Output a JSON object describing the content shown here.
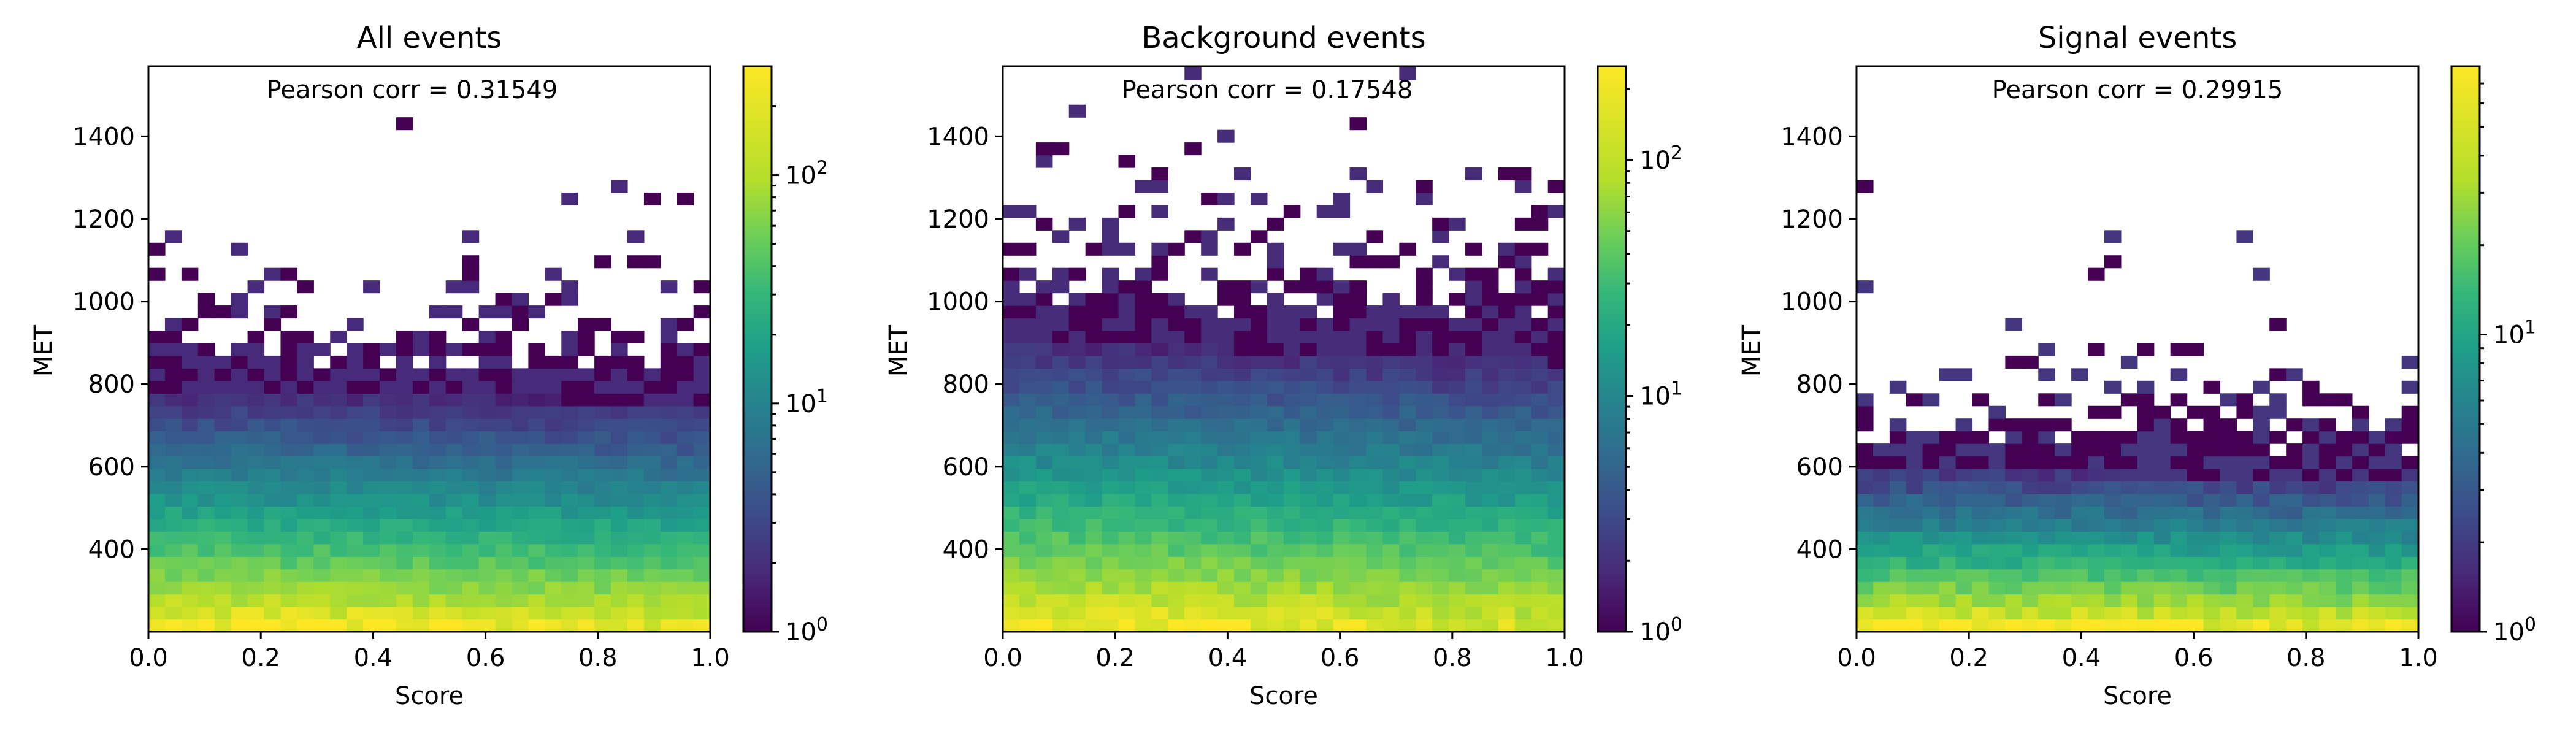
{
  "figure": {
    "panels": [
      {
        "title": "All events",
        "annotation": "Pearson corr = 0.31549"
      },
      {
        "title": "Background events",
        "annotation": "Pearson corr = 0.17548"
      },
      {
        "title": "Signal events",
        "annotation": "Pearson corr = 0.29915"
      }
    ]
  },
  "chart_data": [
    {
      "type": "heatmap",
      "title": "All events",
      "annotation": "Pearson corr = 0.31549",
      "xlabel": "Score",
      "ylabel": "MET",
      "xlim": [
        0.0,
        1.0
      ],
      "ylim": [
        200,
        1570
      ],
      "x_ticks": [
        0.0,
        0.2,
        0.4,
        0.6,
        0.8,
        1.0
      ],
      "x_tick_labels": [
        "0.0",
        "0.2",
        "0.4",
        "0.6",
        "0.8",
        "1.0"
      ],
      "y_ticks": [
        400,
        600,
        800,
        1000,
        1200,
        1400
      ],
      "y_tick_labels": [
        "400",
        "600",
        "800",
        "1000",
        "1200",
        "1400"
      ],
      "bins": {
        "x_count": 34,
        "x_width": 0.0294,
        "y_count": 45,
        "y_width": 30.4
      },
      "colorbar": {
        "scale": "log",
        "range": [
          1,
          300
        ],
        "ticks": [
          1,
          10,
          100
        ],
        "tick_labels": [
          "10^0",
          "10^1",
          "10^2"
        ]
      },
      "profile": {
        "peak_count": 300,
        "decay_per_100": 0.4,
        "score_slope": -0.5
      },
      "seed": 11
    },
    {
      "type": "heatmap",
      "title": "Background events",
      "annotation": "Pearson corr = 0.17548",
      "xlabel": "Score",
      "ylabel": "MET",
      "xlim": [
        0.0,
        1.0
      ],
      "ylim": [
        200,
        1570
      ],
      "x_ticks": [
        0.0,
        0.2,
        0.4,
        0.6,
        0.8,
        1.0
      ],
      "x_tick_labels": [
        "0.0",
        "0.2",
        "0.4",
        "0.6",
        "0.8",
        "1.0"
      ],
      "y_ticks": [
        400,
        600,
        800,
        1000,
        1200,
        1400
      ],
      "y_tick_labels": [
        "400",
        "600",
        "800",
        "1000",
        "1200",
        "1400"
      ],
      "bins": {
        "x_count": 34,
        "x_width": 0.0294,
        "y_count": 45,
        "y_width": 30.4
      },
      "colorbar": {
        "scale": "log",
        "range": [
          1,
          250
        ],
        "ticks": [
          1,
          10,
          100
        ],
        "tick_labels": [
          "10^0",
          "10^1",
          "10^2"
        ]
      },
      "profile": {
        "peak_count": 250,
        "decay_per_100": 0.32,
        "score_slope": -0.6
      },
      "seed": 23
    },
    {
      "type": "heatmap",
      "title": "Signal events",
      "annotation": "Pearson corr = 0.29915",
      "xlabel": "Score",
      "ylabel": "MET",
      "xlim": [
        0.0,
        1.0
      ],
      "ylim": [
        200,
        1570
      ],
      "x_ticks": [
        0.0,
        0.2,
        0.4,
        0.6,
        0.8,
        1.0
      ],
      "x_tick_labels": [
        "0.0",
        "0.2",
        "0.4",
        "0.6",
        "0.8",
        "1.0"
      ],
      "y_ticks": [
        400,
        600,
        800,
        1000,
        1200,
        1400
      ],
      "y_tick_labels": [
        "400",
        "600",
        "800",
        "1000",
        "1200",
        "1400"
      ],
      "bins": {
        "x_count": 34,
        "x_width": 0.0294,
        "y_count": 45,
        "y_width": 30.4
      },
      "colorbar": {
        "scale": "log",
        "range": [
          1,
          80
        ],
        "ticks": [
          1,
          10
        ],
        "tick_labels": [
          "10^0",
          "10^1"
        ]
      },
      "profile": {
        "peak_count": 80,
        "decay_per_100": 0.45,
        "score_slope": -0.3
      },
      "seed": 37
    }
  ]
}
